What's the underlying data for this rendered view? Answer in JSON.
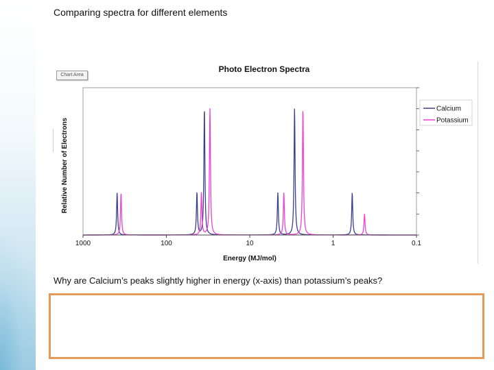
{
  "slide": {
    "title": "Comparing spectra for different elements",
    "question": "Why are Calcium’s peaks slightly higher in energy (x-axis) than potassium’s peaks?",
    "answer_box_text": "",
    "chart_area_label": "Chart Area"
  },
  "colors": {
    "calcium": "#3b3f8c",
    "potassium": "#ee3fd6",
    "answer_border": "#e79a57",
    "axis": "#444444",
    "plot_border": "#888888"
  },
  "chart_data": {
    "type": "line",
    "title": "Photo Electron Spectra",
    "xlabel": "Energy (MJ/mol)",
    "ylabel": "Relative Number of Electrons",
    "x_scale": "log",
    "x_reversed": true,
    "xlim": [
      1000,
      0.1
    ],
    "ylim": [
      0,
      6
    ],
    "x_ticks": [
      1000,
      100,
      10,
      1,
      0.1
    ],
    "x_tick_labels": [
      "1000",
      "100",
      "10",
      "1",
      "0.1"
    ],
    "grid": false,
    "legend_position": "right",
    "series": [
      {
        "name": "Calcium",
        "color": "#3b3f8c",
        "peaks": [
          {
            "energy": 390,
            "height": 2
          },
          {
            "energy": 43,
            "height": 2
          },
          {
            "energy": 35,
            "height": 6
          },
          {
            "energy": 4.6,
            "height": 2
          },
          {
            "energy": 2.9,
            "height": 6
          },
          {
            "energy": 0.59,
            "height": 2
          }
        ]
      },
      {
        "name": "Potassium",
        "color": "#ee3fd6",
        "peaks": [
          {
            "energy": 350,
            "height": 2
          },
          {
            "energy": 38,
            "height": 2
          },
          {
            "energy": 30,
            "height": 6
          },
          {
            "energy": 3.9,
            "height": 2
          },
          {
            "energy": 2.3,
            "height": 6
          },
          {
            "energy": 0.42,
            "height": 1
          }
        ]
      }
    ]
  }
}
